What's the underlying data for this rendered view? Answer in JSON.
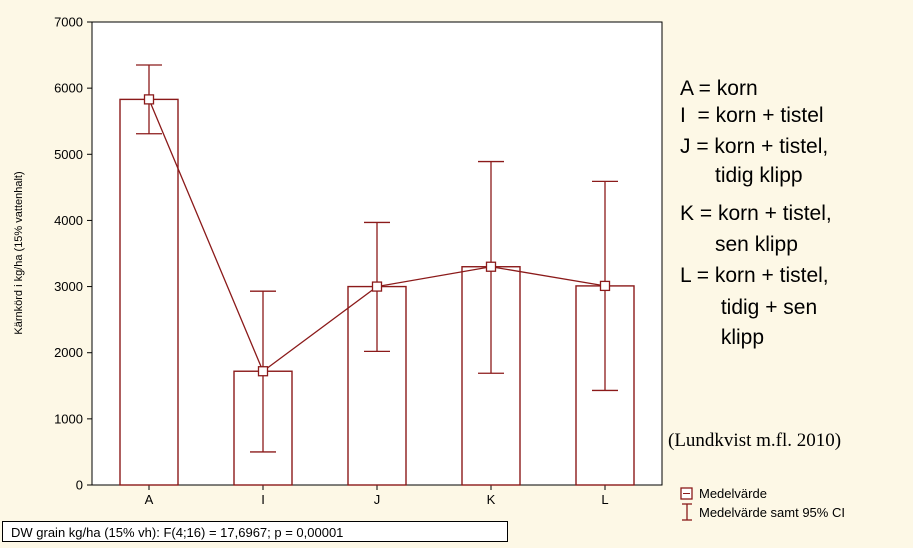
{
  "chart_data": {
    "type": "bar",
    "categories": [
      "A",
      "I",
      "J",
      "K",
      "L"
    ],
    "series": [
      {
        "name": "Medelvärde",
        "values": [
          5830,
          1720,
          3000,
          3300,
          3010
        ]
      }
    ],
    "ci_lower": [
      5310,
      500,
      2020,
      1690,
      1430
    ],
    "ci_upper": [
      6350,
      2930,
      3970,
      4890,
      4590
    ],
    "ylabel": "Kärnkörd i kg/ha (15% vattenhalt)",
    "ylim": [
      0,
      7000
    ],
    "yticks": [
      0,
      1000,
      2000,
      3000,
      4000,
      5000,
      6000,
      7000
    ],
    "grid": false,
    "legend": [
      {
        "label": "Medelvärde",
        "symbol": "square"
      },
      {
        "label": "Medelvärde samt 95% CI",
        "symbol": "error-bar"
      }
    ],
    "colors": {
      "bar": "#8b1a1a",
      "background": "#fdf8e6",
      "plot_bg": "#ffffff"
    }
  },
  "key_lines": [
    "A = korn",
    "I  = korn + tistel",
    "J = korn + tistel,",
    "      tidig klipp",
    "K = korn + tistel,",
    "      sen klipp",
    "L = korn + tistel,",
    "       tidig + sen",
    "       klipp"
  ],
  "credit": "(Lundkvist m.fl. 2010)",
  "stat_text": "DW grain kg/ha (15% vh):   F(4;16) = 17,6967; p = 0,00001"
}
